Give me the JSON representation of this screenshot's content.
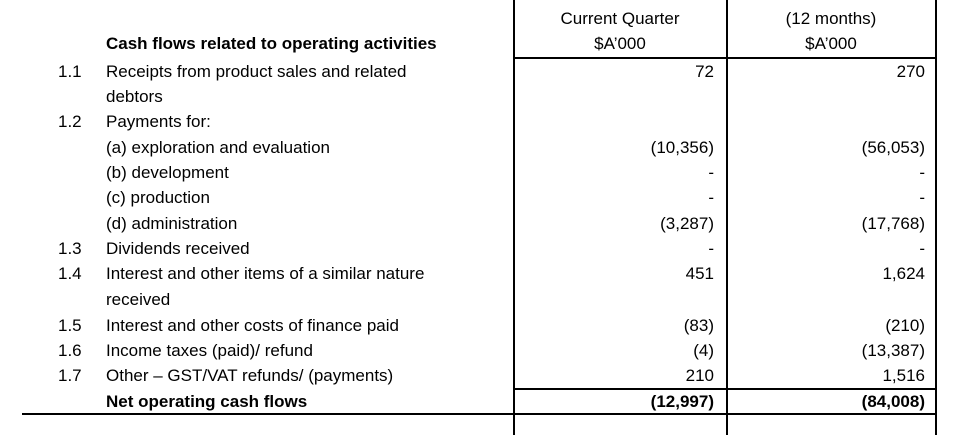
{
  "columns": {
    "current_quarter": {
      "title": "Current Quarter",
      "unit": "$A’000"
    },
    "year_to_date": {
      "title": "(12 months)",
      "unit": "$A’000"
    }
  },
  "section_title": "Cash flows related to operating activities",
  "rows": [
    {
      "num": "1.1",
      "label": "Receipts from product sales and related",
      "label2": "debtors",
      "cq": "72",
      "ytd": "270"
    },
    {
      "num": "1.2",
      "label": "Payments for:",
      "cq": "",
      "ytd": ""
    },
    {
      "num": "",
      "label": "(a) exploration and evaluation",
      "cq": "(10,356)",
      "ytd": "(56,053)"
    },
    {
      "num": "",
      "label": "(b) development",
      "cq": "-",
      "ytd": "-"
    },
    {
      "num": "",
      "label": "(c) production",
      "cq": "-",
      "ytd": "-"
    },
    {
      "num": "",
      "label": "(d) administration",
      "cq": "(3,287)",
      "ytd": "(17,768)"
    },
    {
      "num": "1.3",
      "label": "Dividends received",
      "cq": "-",
      "ytd": "-"
    },
    {
      "num": "1.4",
      "label": "Interest and other items of a similar nature",
      "label2": "received",
      "cq": "451",
      "ytd": "1,624"
    },
    {
      "num": "1.5",
      "label": "Interest and other costs of finance paid",
      "cq": "(83)",
      "ytd": "(210)"
    },
    {
      "num": "1.6",
      "label": "Income taxes (paid)/ refund",
      "cq": "(4)",
      "ytd": "(13,387)"
    },
    {
      "num": "1.7",
      "label": "Other – GST/VAT refunds/ (payments)",
      "cq": "210",
      "ytd": "1,516"
    }
  ],
  "total": {
    "label": "Net operating cash flows",
    "cq": "(12,997)",
    "ytd": "(84,008)"
  }
}
